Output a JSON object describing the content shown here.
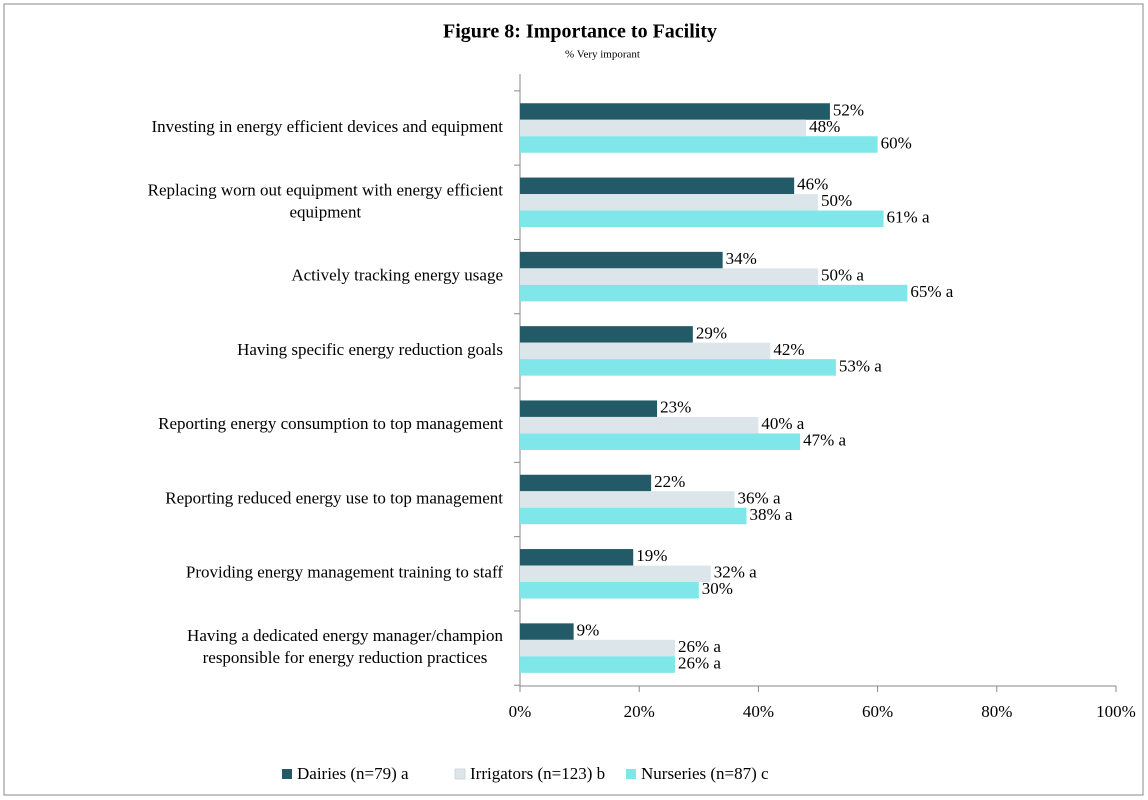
{
  "chart_data": {
    "type": "bar",
    "orientation": "horizontal",
    "title": "Figure 8: Importance to Facility",
    "subtitle": "% Very imporant",
    "categories": [
      "Investing in energy efficient devices and equipment",
      "Replacing worn out equipment with energy efficient\nequipment",
      "Actively tracking energy usage",
      "Having specific energy reduction goals",
      "Reporting energy consumption to top management",
      "Reporting reduced energy use to top management",
      "Providing energy management training to staff",
      "Having a dedicated energy manager/champion\nresponsible for energy reduction practices"
    ],
    "series": [
      {
        "name": "Dairies (n=79) a",
        "color": "#235a68",
        "values": [
          52,
          46,
          34,
          29,
          23,
          22,
          19,
          9
        ],
        "value_labels": [
          "52%",
          "46%",
          "34%",
          "29%",
          "23%",
          "22%",
          "19%",
          "9%"
        ]
      },
      {
        "name": "Irrigators (n=123) b",
        "color": "#dce6ea",
        "values": [
          48,
          50,
          50,
          42,
          40,
          36,
          32,
          26
        ],
        "value_labels": [
          "48%",
          "50%",
          "50% a",
          "42%",
          "40% a",
          "36% a",
          "32% a",
          "26% a"
        ]
      },
      {
        "name": "Nurseries (n=87) c",
        "color": "#7fe6ea",
        "values": [
          60,
          61,
          65,
          53,
          47,
          38,
          30,
          26
        ],
        "value_labels": [
          "60%",
          "61% a",
          "65% a",
          "53% a",
          "47% a",
          "38% a",
          "30%",
          "26% a"
        ]
      }
    ],
    "xlim": [
      0,
      100
    ],
    "xticks": [
      {
        "value": 0,
        "label": "0%"
      },
      {
        "value": 20,
        "label": "20%"
      },
      {
        "value": 40,
        "label": "40%"
      },
      {
        "value": 60,
        "label": "60%"
      },
      {
        "value": 80,
        "label": "80%"
      },
      {
        "value": 100,
        "label": "100%"
      }
    ],
    "legend": "bottom"
  }
}
